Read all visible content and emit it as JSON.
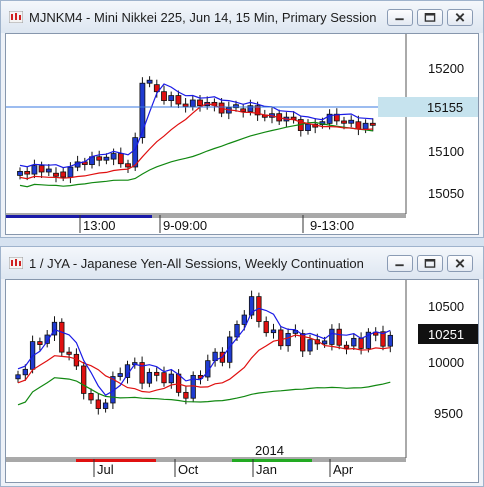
{
  "windows": [
    {
      "title": "MJNKM4 - Mini Nikkei 225, Jun 14, 15 Min, Primary Session",
      "price_labels": [
        "15200",
        "15150",
        "15100",
        "15050"
      ],
      "last_price": "15155",
      "time_labels": [
        "13:00",
        "9-09:00",
        "9-13:00"
      ],
      "colors": {
        "up": "#1f3bd0",
        "down": "#e01010",
        "fast_ma": "#1a1ae6",
        "mid_ma": "#e01010",
        "slow_ma": "#118811",
        "last_line": "#3a7ae0"
      }
    },
    {
      "title": "1 / JYA - Japanese Yen-All Sessions, Weekly Continuation",
      "price_labels": [
        "10500",
        "10000",
        "9500"
      ],
      "last_price": "10251",
      "year_label": "2014",
      "time_labels": [
        "Jul",
        "Oct",
        "Jan",
        "Apr"
      ],
      "colors": {
        "up": "#1f3bd0",
        "down": "#e01010",
        "fast_ma": "#1a1ae6",
        "mid_ma": "#e01010",
        "slow_ma": "#118811"
      }
    }
  ],
  "window_buttons": [
    "minimize-icon",
    "restore-icon",
    "close-icon"
  ]
}
